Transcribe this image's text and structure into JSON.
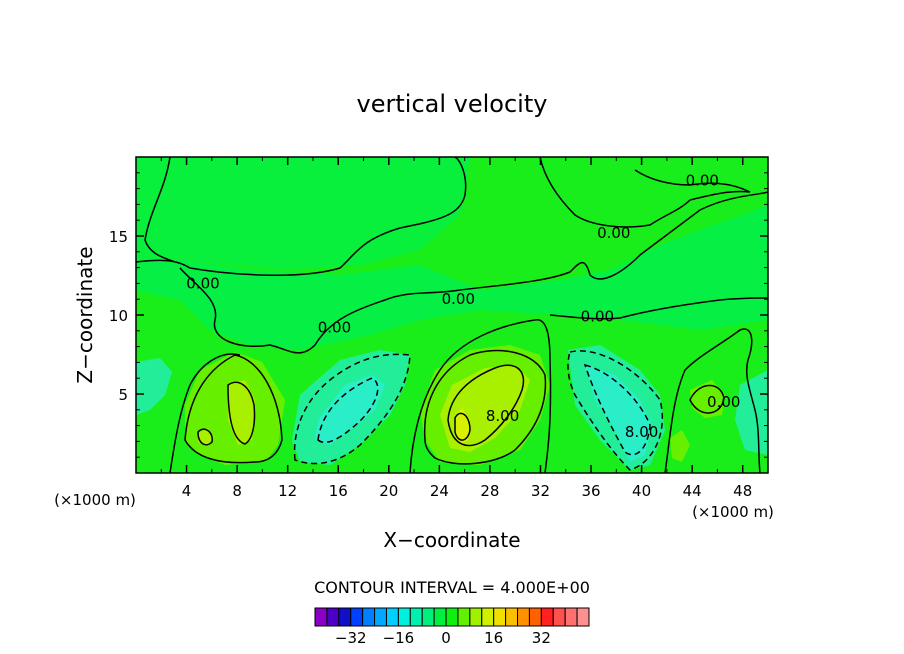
{
  "chart_data": {
    "type": "heatmap",
    "title": "vertical velocity",
    "xlabel": "X−coordinate",
    "ylabel": "Z−coordinate",
    "x_unit_left": "(×1000 m)",
    "x_unit_right": "(×1000 m)",
    "xlim": [
      0,
      50
    ],
    "ylim": [
      0,
      20
    ],
    "x_ticks": [
      4,
      8,
      12,
      16,
      20,
      24,
      28,
      32,
      36,
      40,
      44,
      48
    ],
    "y_ticks": [
      5,
      10,
      15
    ],
    "contour_interval_text": "CONTOUR INTERVAL = 4.000E+00",
    "contour_interval": 4,
    "background_color": "#1aee1a",
    "contour_labels": [
      {
        "text": "0.00",
        "x": 5.3,
        "y": 12.0
      },
      {
        "text": "0.00",
        "x": 15.7,
        "y": 9.2
      },
      {
        "text": "0.00",
        "x": 25.5,
        "y": 11.0
      },
      {
        "text": "0.00",
        "x": 36.5,
        "y": 9.9
      },
      {
        "text": "0.00",
        "x": 37.8,
        "y": 15.2
      },
      {
        "text": "0.00",
        "x": 44.8,
        "y": 18.5
      },
      {
        "text": "8.00",
        "x": 29.0,
        "y": 3.6
      },
      {
        "text": "8.00",
        "x": 40.0,
        "y": 2.6
      },
      {
        "text": "0.00",
        "x": 46.5,
        "y": 4.5
      }
    ],
    "colorbar": {
      "tick_labels": [
        "−32",
        "−16",
        "0",
        "16",
        "32"
      ],
      "tick_values": [
        -32,
        -16,
        0,
        16,
        32
      ],
      "colors": [
        "#8a00c8",
        "#4a00c8",
        "#1010c8",
        "#0040ff",
        "#0080ff",
        "#00a8ff",
        "#00d0ff",
        "#00f0e0",
        "#00f0b0",
        "#00f080",
        "#00f040",
        "#10f010",
        "#60f000",
        "#a0f000",
        "#d0f000",
        "#f0e000",
        "#f8c000",
        "#ff9000",
        "#ff6000",
        "#ff2020",
        "#ff5050",
        "#ff7070",
        "#ff9090"
      ]
    }
  }
}
